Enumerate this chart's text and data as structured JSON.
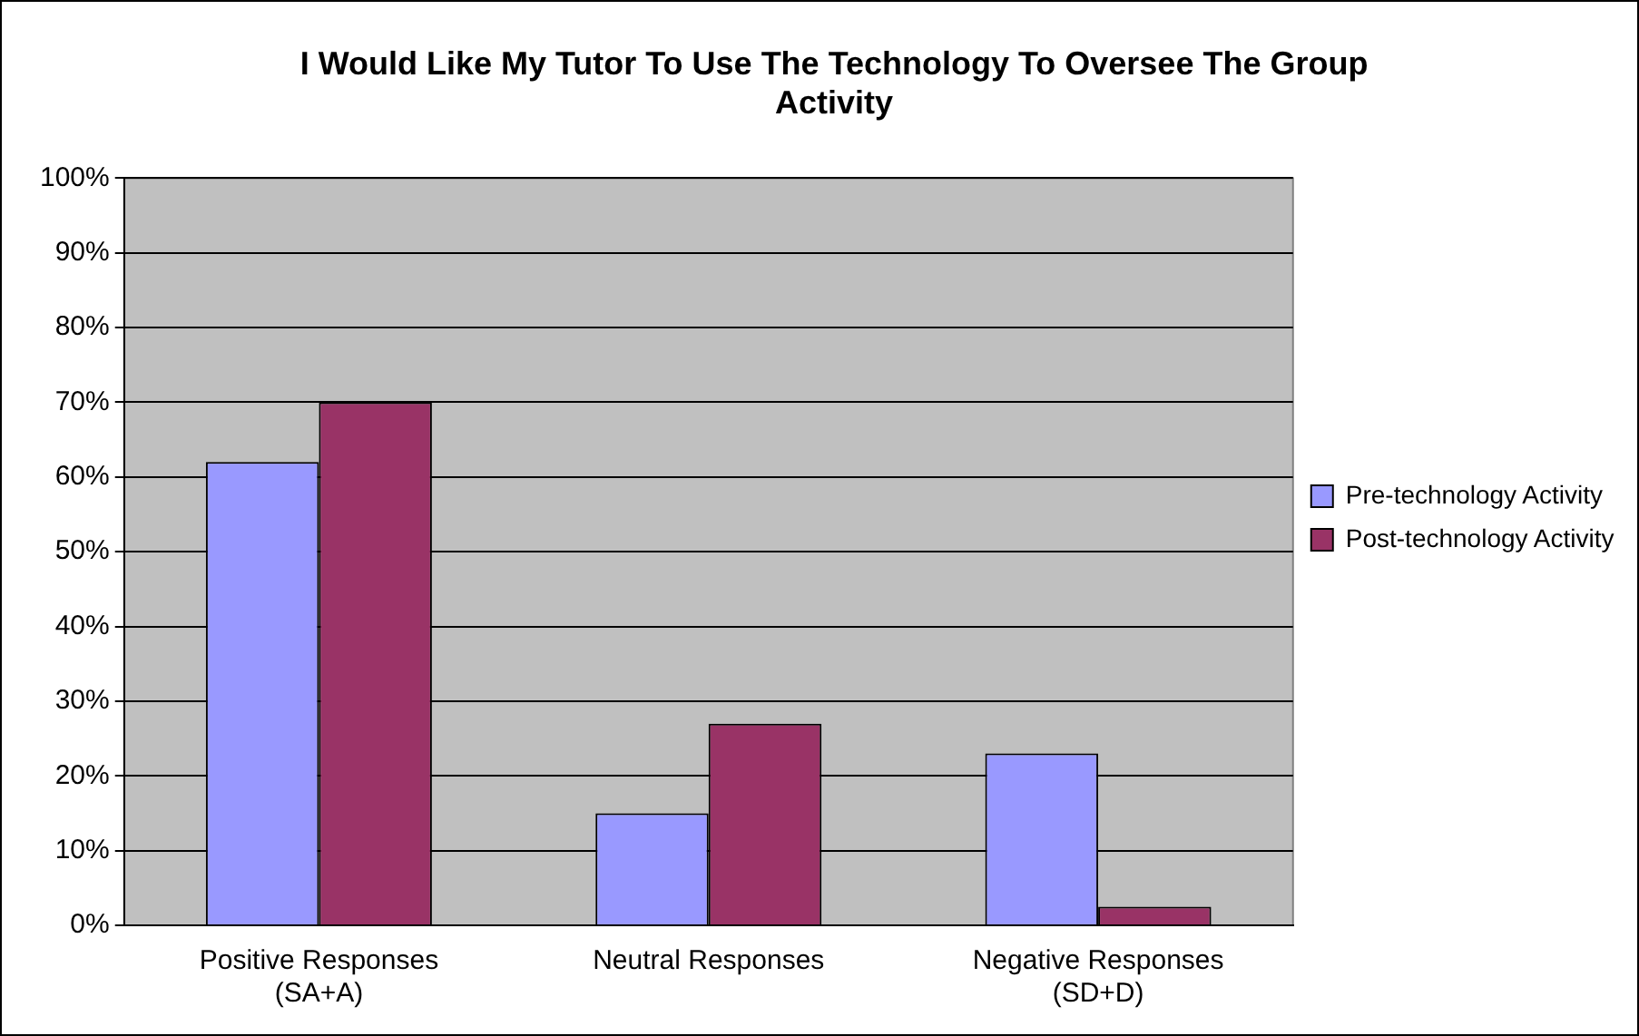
{
  "chart_data": {
    "type": "bar",
    "title": "I Would Like My Tutor To Use The Technology To Oversee The Group Activity",
    "categories": [
      "Positive Responses (SA+A)",
      "Neutral Responses",
      "Negative Responses (SD+D)"
    ],
    "series": [
      {
        "name": "Pre-technology Activity",
        "color": "#9999ff",
        "values": [
          62,
          15,
          23
        ]
      },
      {
        "name": "Post-technology Activity",
        "color": "#993366",
        "values": [
          70,
          27,
          2.5
        ]
      }
    ],
    "ylim": [
      0,
      100
    ],
    "yticks": [
      {
        "value": 0,
        "label": "0%"
      },
      {
        "value": 10,
        "label": "10%"
      },
      {
        "value": 20,
        "label": "20%"
      },
      {
        "value": 30,
        "label": "30%"
      },
      {
        "value": 40,
        "label": "40%"
      },
      {
        "value": 50,
        "label": "50%"
      },
      {
        "value": 60,
        "label": "60%"
      },
      {
        "value": 70,
        "label": "70%"
      },
      {
        "value": 80,
        "label": "80%"
      },
      {
        "value": 90,
        "label": "90%"
      },
      {
        "value": 100,
        "label": "100%"
      }
    ],
    "grid": "y",
    "legend": "right"
  }
}
